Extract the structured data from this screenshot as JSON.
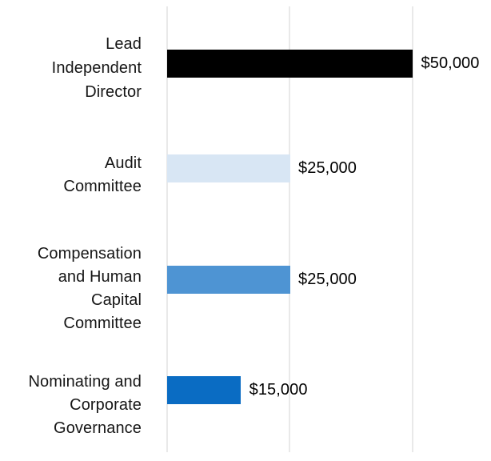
{
  "chart_data": {
    "type": "bar",
    "orientation": "horizontal",
    "title": "",
    "xlabel": "",
    "ylabel": "",
    "categories": [
      "Lead Independent Director",
      "Audit Committee",
      "Compensation and Human Capital Committee",
      "Nominating and Corporate Governance"
    ],
    "categories_display": [
      "Lead\nIndependent\nDirector",
      "Audit\nCommittee",
      "Compensation\nand Human\nCapital\nCommittee",
      "Nominating and\nCorporate\nGovernance"
    ],
    "values": [
      50000,
      25000,
      25000,
      15000
    ],
    "value_labels": [
      "$50,000",
      "$25,000",
      "$25,000",
      "$15,000"
    ],
    "bar_colors": [
      "#000000",
      "#d8e6f4",
      "#4e94d3",
      "#0a6cc3"
    ],
    "xlim": [
      0,
      65000
    ],
    "axis_ticks": [
      0,
      25000,
      50000
    ],
    "grid": true,
    "gridline_color": "#e9e9e9",
    "legend": "none",
    "data_label_position": "right-of-bar"
  }
}
